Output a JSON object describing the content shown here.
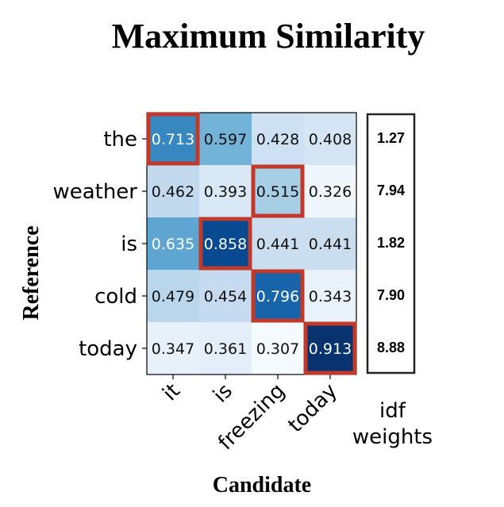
{
  "chart_data": {
    "type": "heatmap",
    "title": "Maximum Similarity",
    "xlabel": "Candidate",
    "ylabel": "Reference",
    "x_tokens": [
      "it",
      "is",
      "freezing",
      "today"
    ],
    "y_tokens": [
      "the",
      "weather",
      "is",
      "cold",
      "today"
    ],
    "values": [
      [
        0.713,
        0.597,
        0.428,
        0.408
      ],
      [
        0.462,
        0.393,
        0.515,
        0.326
      ],
      [
        0.635,
        0.858,
        0.441,
        0.441
      ],
      [
        0.479,
        0.454,
        0.796,
        0.343
      ],
      [
        0.347,
        0.361,
        0.307,
        0.913
      ]
    ],
    "value_labels": [
      [
        "0.713",
        "0.597",
        "0.428",
        "0.408"
      ],
      [
        "0.462",
        "0.393",
        "0.515",
        "0.326"
      ],
      [
        "0.635",
        "0.858",
        "0.441",
        "0.441"
      ],
      [
        "0.479",
        "0.454",
        "0.796",
        "0.343"
      ],
      [
        "0.347",
        "0.361",
        "0.307",
        "0.913"
      ]
    ],
    "max_cells": [
      [
        0,
        0
      ],
      [
        1,
        2
      ],
      [
        2,
        1
      ],
      [
        3,
        2
      ],
      [
        4,
        3
      ]
    ],
    "idf_label": "idf weights",
    "idf_label_lines": [
      "idf",
      "weights"
    ],
    "idf_weights": [
      "1.27",
      "7.94",
      "1.82",
      "7.90",
      "8.88"
    ],
    "colormap": "Blues",
    "highlight_color": "#c0392b"
  }
}
